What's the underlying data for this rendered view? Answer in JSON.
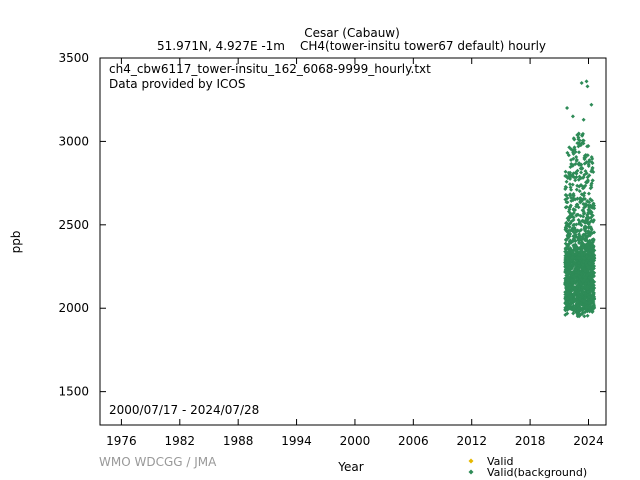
{
  "chart_data": {
    "type": "scatter",
    "title": "Cesar (Cabauw)",
    "subtitle_left": "51.971N, 4.927E -1m",
    "subtitle_right": "CH4(tower-insitu tower67 default) hourly",
    "xlabel": "Year",
    "ylabel": "ppb",
    "xlim": [
      1973.8,
      2025.8
    ],
    "ylim": [
      1300,
      3500
    ],
    "xticks": [
      1976,
      1982,
      1988,
      1994,
      2000,
      2006,
      2012,
      2018,
      2024
    ],
    "yticks": [
      1500,
      2000,
      2500,
      3000,
      3500
    ],
    "grid": false,
    "annotations": {
      "filename": "ch4_cbw6117_tower-insitu_162_6068-9999_hourly.txt",
      "provider": "Data provided by ICOS",
      "date_range": "2000/07/17 - 2024/07/28"
    },
    "credit": "WMO WDCGG / JMA",
    "legend": {
      "placement": "bottom-right",
      "entries": [
        {
          "label": "Valid",
          "color": "#e6b800"
        },
        {
          "label": "Valid(background)",
          "color": "#2e8b57"
        }
      ]
    },
    "series": [
      {
        "name": "Valid(background)",
        "color": "#2e8b57",
        "x_range": [
          2021.6,
          2024.6
        ],
        "bulk_range": [
          1990,
          2300
        ],
        "min_value": 1950,
        "upper_envelope": [
          2900,
          3000,
          3050,
          3080,
          3000,
          2850
        ],
        "outliers": [
          {
            "x": 2021.8,
            "y": 3200
          },
          {
            "x": 2023.3,
            "y": 3350
          },
          {
            "x": 2023.8,
            "y": 3360
          },
          {
            "x": 2023.9,
            "y": 3330
          },
          {
            "x": 2024.3,
            "y": 3220
          },
          {
            "x": 2022.4,
            "y": 3150
          },
          {
            "x": 2023.5,
            "y": 3130
          }
        ]
      }
    ]
  }
}
